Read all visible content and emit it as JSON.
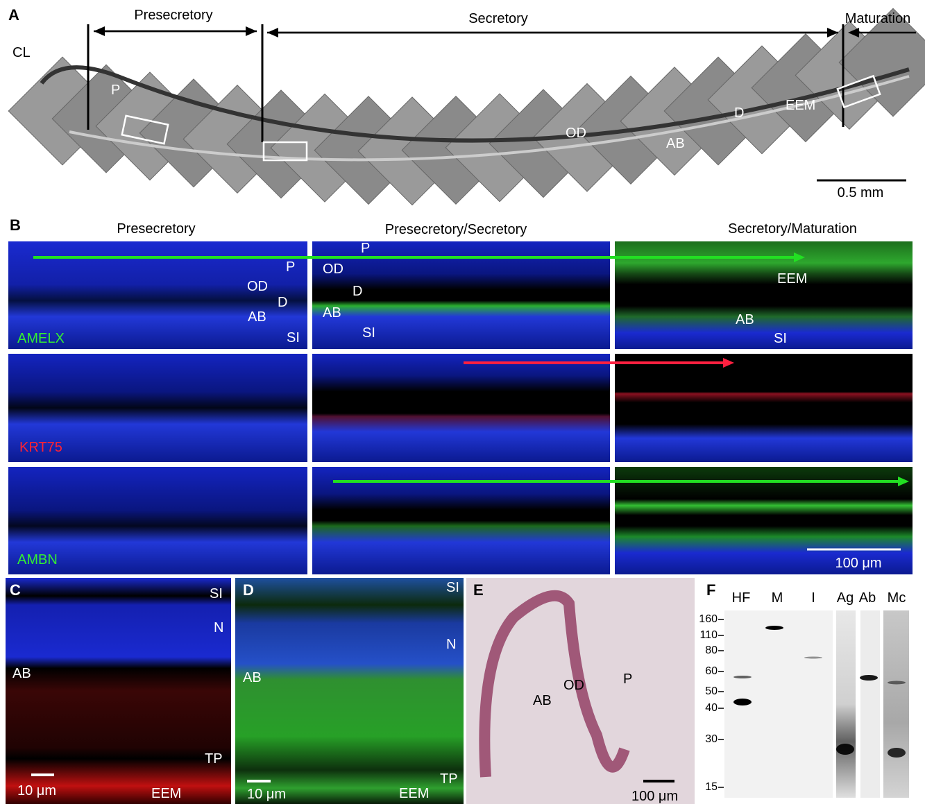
{
  "panel_a": {
    "label": "A",
    "stages": [
      "Presecretory",
      "Secretory",
      "Maturation"
    ],
    "regions": [
      "CL",
      "P",
      "OD",
      "AB",
      "D",
      "EEM"
    ],
    "scale_bar": "0.5 mm"
  },
  "panel_b": {
    "label": "B",
    "columns": [
      "Presecretory",
      "Presecretory/Secretory",
      "Secretory/Maturation"
    ],
    "markers": [
      "AMELX",
      "KRT75",
      "AMBN"
    ],
    "regions": [
      [
        "P",
        "OD",
        "D",
        "AB",
        "SI"
      ],
      [
        "P",
        "OD",
        "D",
        "AB",
        "SI"
      ],
      [
        "EEM",
        "AB",
        "SI"
      ]
    ],
    "scale_bar": "100 μm"
  },
  "panel_c": {
    "label": "C",
    "regions": [
      "SI",
      "N",
      "AB",
      "TP",
      "EEM"
    ],
    "scale_bar": "10 μm"
  },
  "panel_d": {
    "label": "D",
    "regions": [
      "SI",
      "N",
      "AB",
      "TP",
      "EEM"
    ],
    "scale_bar": "10 μm"
  },
  "panel_e": {
    "label": "E",
    "regions": [
      "AB",
      "OD",
      "P"
    ],
    "scale_bar": "100 μm"
  },
  "panel_f": {
    "label": "F",
    "lanes": [
      "HF",
      "M",
      "I",
      "Ag",
      "Ab",
      "Mc"
    ],
    "mw_markers": [
      160,
      110,
      80,
      60,
      50,
      40,
      30,
      15
    ]
  }
}
